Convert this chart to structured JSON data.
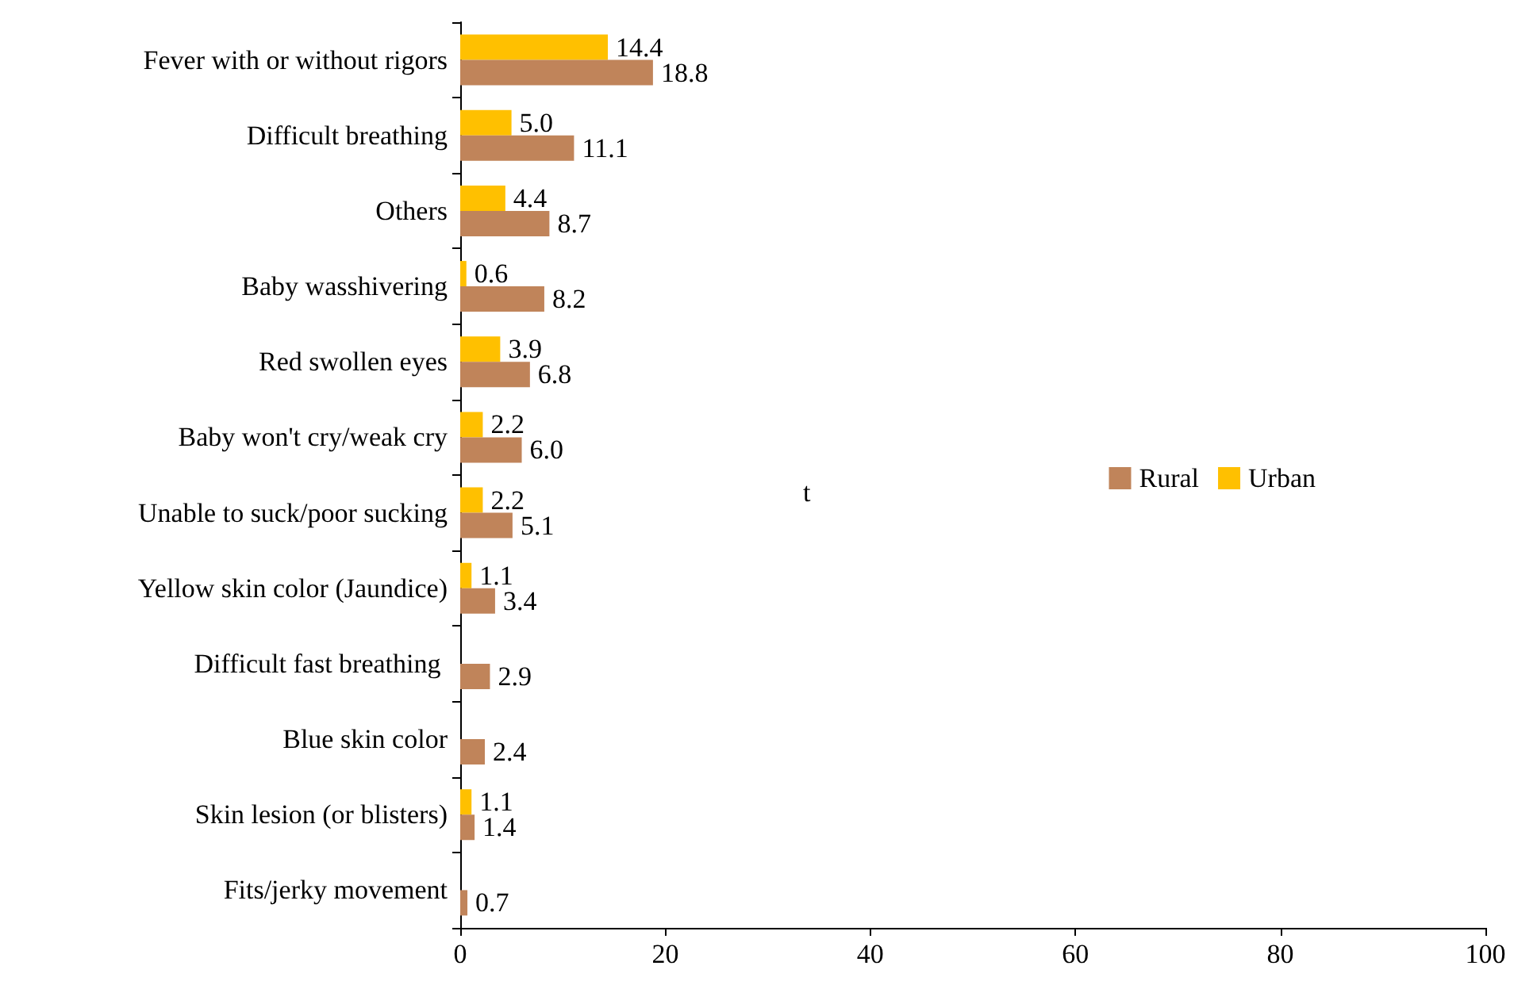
{
  "chart_data": {
    "type": "bar",
    "orientation": "horizontal",
    "categories": [
      "Fever with or without rigors",
      "Difficult breathing",
      "Others",
      "Baby wasshivering",
      "Red swollen eyes",
      "Baby won't cry/weak cry",
      "Unable to suck/poor sucking",
      "Yellow skin color (Jaundice)",
      "Difficult fast breathing ",
      "Blue skin color",
      "Skin lesion (or blisters)",
      "Fits/jerky movement"
    ],
    "series": [
      {
        "name": "Rural",
        "color": "#c0845a",
        "values": [
          18.8,
          11.1,
          8.7,
          8.2,
          6.8,
          6.0,
          5.1,
          3.4,
          2.9,
          2.4,
          1.4,
          0.7
        ],
        "value_labels": [
          "18.8",
          "11.1",
          "8.7",
          "8.2",
          "6.8",
          "6.0",
          "5.1",
          "3.4",
          "2.9",
          "2.4",
          "1.4",
          "0.7"
        ]
      },
      {
        "name": "Urban",
        "color": "#ffc000",
        "values": [
          14.4,
          5.0,
          4.4,
          0.6,
          3.9,
          2.2,
          2.2,
          1.1,
          null,
          null,
          1.1,
          null
        ],
        "value_labels": [
          "14.4",
          "5.0",
          "4.4",
          "0.6",
          "3.9",
          "2.2",
          "2.2",
          "1.1",
          null,
          null,
          "1.1",
          null
        ]
      }
    ],
    "xlim": [
      0,
      100
    ],
    "xticks": [
      0,
      20,
      40,
      60,
      80,
      100
    ],
    "grid": false,
    "legend": "right",
    "annotations": [
      "t"
    ]
  }
}
